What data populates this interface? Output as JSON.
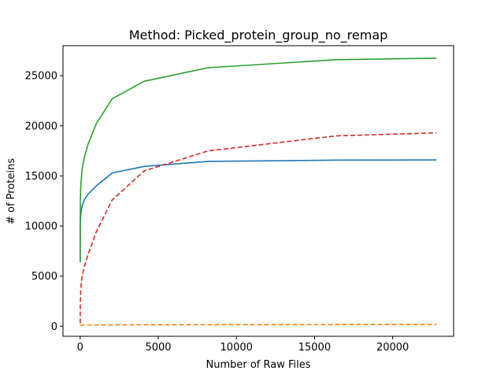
{
  "chart_data": {
    "type": "line",
    "title": "Method: Picked_protein_group_no_remap",
    "xlabel": "Number of Raw Files",
    "ylabel": "# of Proteins",
    "xlim": [
      -1100,
      23900
    ],
    "ylim": [
      -1000,
      28000
    ],
    "xticks": [
      0,
      5000,
      10000,
      15000,
      20000
    ],
    "yticks": [
      0,
      5000,
      10000,
      15000,
      20000,
      25000
    ],
    "xtick_labels": [
      "0",
      "5000",
      "10000",
      "15000",
      "20000"
    ],
    "ytick_labels": [
      "0",
      "5000",
      "10000",
      "15000",
      "20000",
      "25000"
    ],
    "grid": false,
    "legend": "none",
    "series": [
      {
        "color": "#1f77b4",
        "dash": "solid",
        "x": [
          1,
          2,
          4,
          8,
          16,
          32,
          64,
          128,
          256,
          512,
          1024,
          2048,
          4096,
          8192,
          16384,
          22800
        ],
        "y": [
          6400,
          8300,
          9400,
          10200,
          10700,
          11100,
          11500,
          12000,
          12600,
          13200,
          14000,
          15300,
          15950,
          16450,
          16580,
          16600
        ]
      },
      {
        "color": "#ff7f0e",
        "dash": "dashed",
        "x": [
          1,
          2,
          4,
          8,
          16,
          32,
          64,
          128,
          256,
          512,
          1024,
          2048,
          4096,
          8192,
          16384,
          22800
        ],
        "y": [
          50,
          60,
          70,
          80,
          90,
          95,
          100,
          110,
          115,
          120,
          130,
          140,
          150,
          160,
          170,
          175
        ]
      },
      {
        "color": "#2ca02c",
        "dash": "solid",
        "x": [
          1,
          2,
          4,
          8,
          16,
          32,
          64,
          128,
          256,
          512,
          1024,
          2048,
          4096,
          8192,
          16384,
          22800
        ],
        "y": [
          6400,
          8400,
          10100,
          11500,
          12700,
          13700,
          14600,
          15700,
          16800,
          18200,
          20200,
          22700,
          24450,
          25800,
          26600,
          26750
        ]
      },
      {
        "color": "#d62728",
        "dash": "dashed",
        "x": [
          1,
          2,
          4,
          8,
          16,
          32,
          64,
          128,
          256,
          512,
          1024,
          2048,
          4096,
          8192,
          16384,
          22800
        ],
        "y": [
          300,
          800,
          1300,
          2000,
          2700,
          3500,
          4200,
          5000,
          5900,
          7200,
          9400,
          12600,
          15500,
          17500,
          19000,
          19300
        ]
      }
    ]
  }
}
